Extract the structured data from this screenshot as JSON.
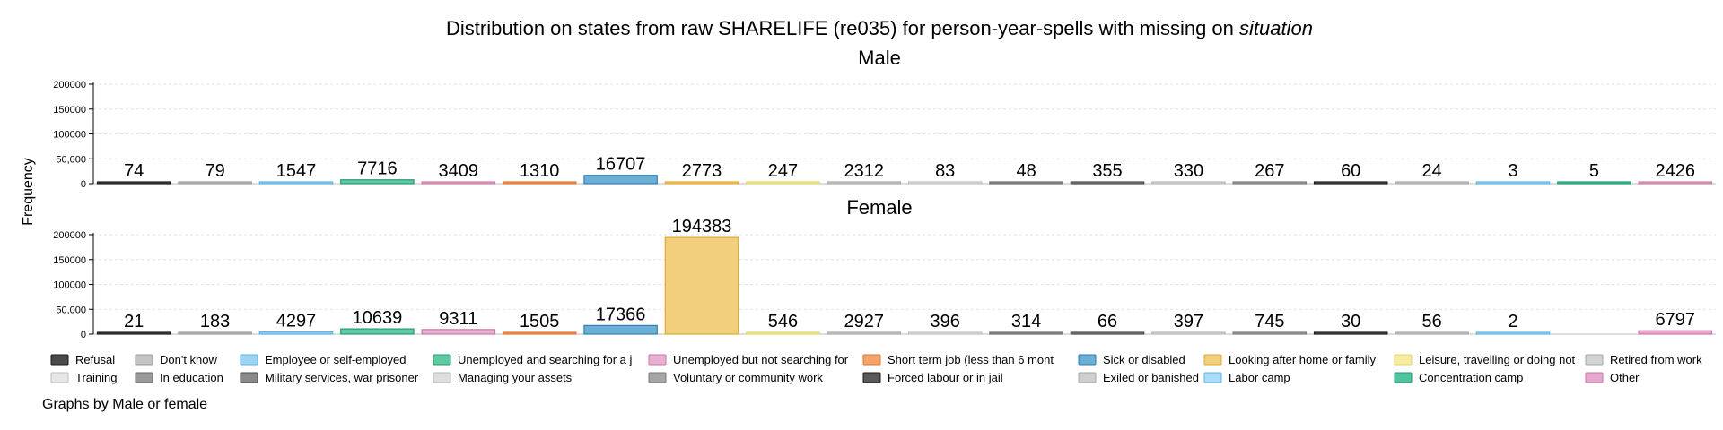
{
  "chart_data": {
    "type": "bar",
    "title": "Distribution on states from raw SHARELIFE (re035) for person-year-spells with missing on ",
    "title_italic": "situation",
    "ylabel": "Frequency",
    "note": "Graphs by Male or female",
    "ylim": [
      0,
      200000
    ],
    "yticks": [
      0,
      50000,
      100000,
      150000,
      200000
    ],
    "ytick_labels": [
      "0",
      "50,000",
      "100000",
      "150000",
      "200000"
    ],
    "grid": true,
    "legend_position": "bottom",
    "categories": [
      "Refusal",
      "Don't know",
      "Employee or self-employed",
      "Unemployed and searching for a j",
      "Unemployed but not searching for",
      "Short term job (less than 6 mont",
      "Sick or disabled",
      "Looking after home or family",
      "Leisure, travelling or doing not",
      "Retired from work",
      "Training",
      "In education",
      "Military services, war prisoner",
      "Managing your assets",
      "Voluntary or community work",
      "Forced labour or in jail",
      "Exiled or banished",
      "Labor camp",
      "Concentration camp",
      "Other"
    ],
    "colors": [
      "#4a4a4a",
      "#c4c4c4",
      "#9fd3f5",
      "#5fc9a2",
      "#e8afd2",
      "#f2a46b",
      "#6baed6",
      "#f2cf7a",
      "#f7eda0",
      "#d4d4d4",
      "#e6e6e6",
      "#9a9a9a",
      "#8a8a8a",
      "#dedede",
      "#a6a6a6",
      "#5a5a5a",
      "#cfcfcf",
      "#a8dcf8",
      "#4fc4a0",
      "#e6a8cd"
    ],
    "edge_colors": [
      "#1a1a1a",
      "#9a9a9a",
      "#5ab4e0",
      "#2a9a72",
      "#c77aa8",
      "#d9772e",
      "#2f7fb3",
      "#e0a92e",
      "#e6d46a",
      "#a6a6a6",
      "#bdbdbd",
      "#6a6a6a",
      "#4a4a4a",
      "#b5b5b5",
      "#7a7a7a",
      "#1a1a1a",
      "#a6a6a6",
      "#5ab4e0",
      "#1f9a72",
      "#c77aa8"
    ],
    "panels": [
      {
        "name": "Male",
        "values": [
          74,
          79,
          1547,
          7716,
          3409,
          1310,
          16707,
          2773,
          247,
          2312,
          83,
          48,
          355,
          330,
          267,
          60,
          24,
          3,
          5,
          2426
        ]
      },
      {
        "name": "Female",
        "values": [
          21,
          183,
          4297,
          10639,
          9311,
          1505,
          17366,
          194383,
          546,
          2927,
          396,
          314,
          66,
          397,
          745,
          30,
          56,
          2,
          null,
          6797
        ]
      }
    ]
  }
}
